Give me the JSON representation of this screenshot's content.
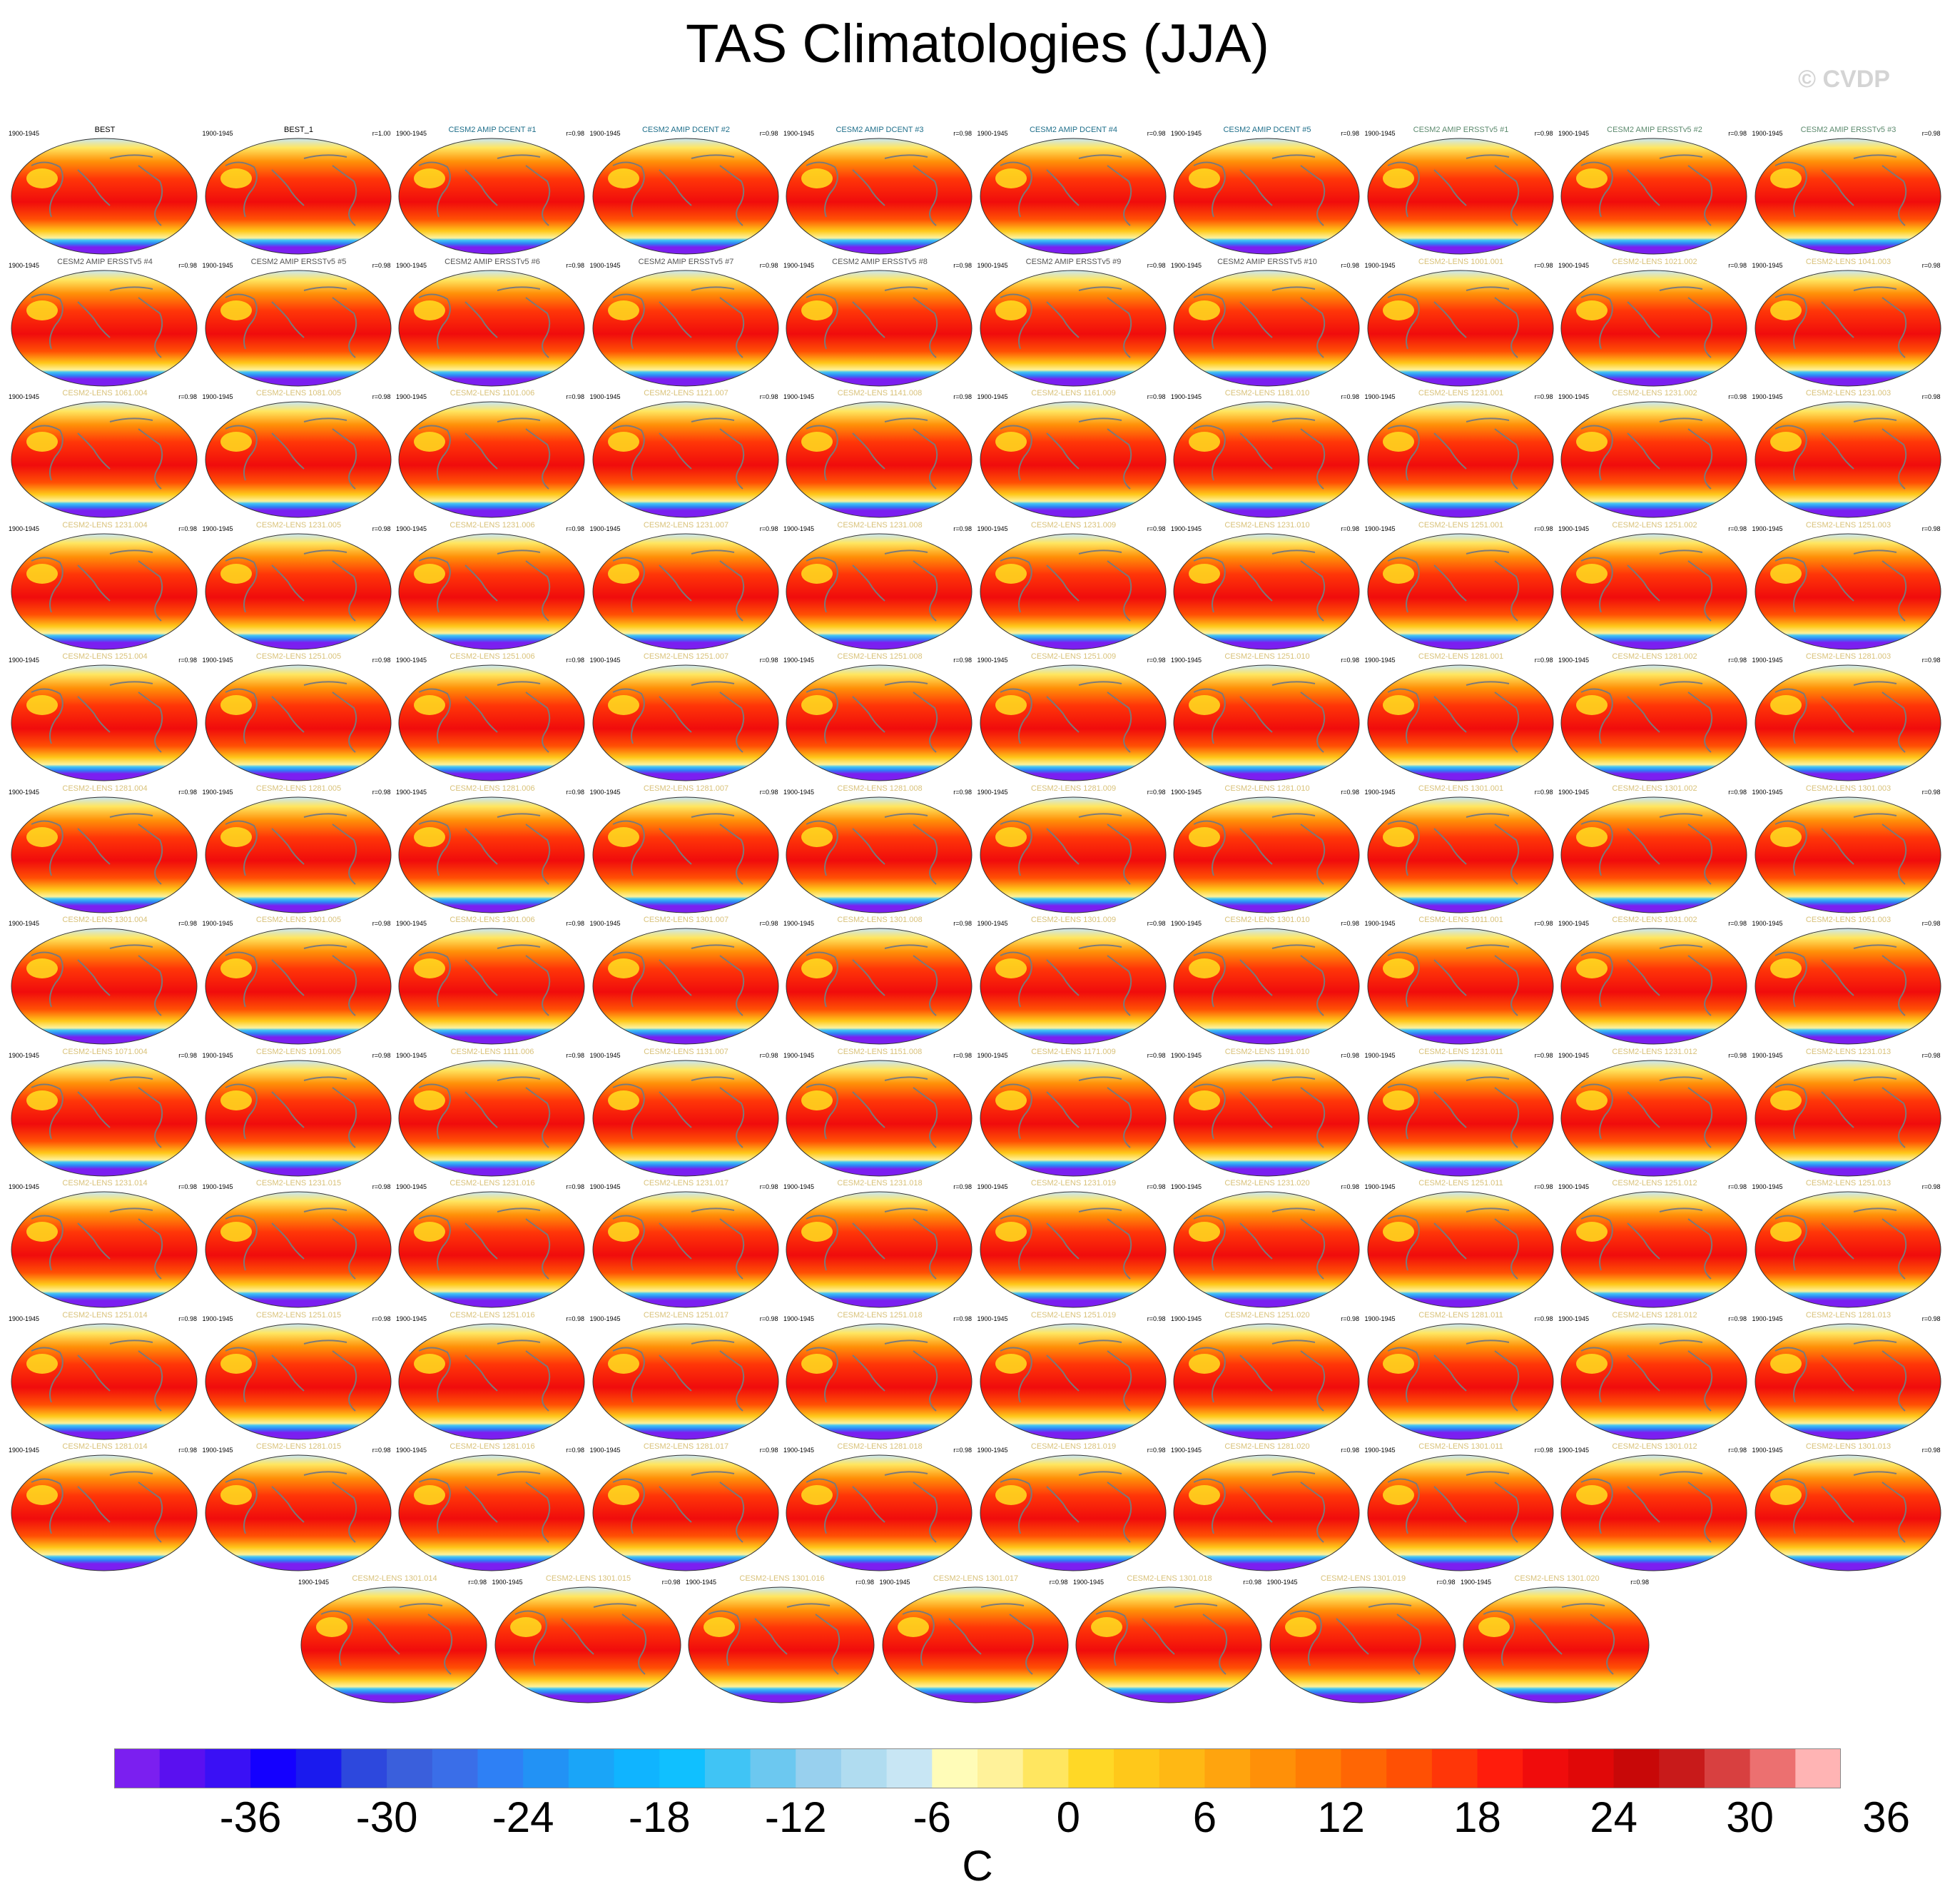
{
  "title": "TAS Climatologies (JJA)",
  "watermark": "© CVDP",
  "period": "1900-1945",
  "panels": [
    {
      "name": "BEST",
      "corr": "",
      "group": "obs"
    },
    {
      "name": "BEST_1",
      "corr": "r=1.00",
      "group": "obs"
    },
    {
      "name": "CESM2 AMIP DCENT #1",
      "corr": "r=0.98",
      "group": "dcent"
    },
    {
      "name": "CESM2 AMIP DCENT #2",
      "corr": "r=0.98",
      "group": "dcent"
    },
    {
      "name": "CESM2 AMIP DCENT #3",
      "corr": "r=0.98",
      "group": "dcent"
    },
    {
      "name": "CESM2 AMIP DCENT #4",
      "corr": "r=0.98",
      "group": "dcent"
    },
    {
      "name": "CESM2 AMIP DCENT #5",
      "corr": "r=0.98",
      "group": "dcent"
    },
    {
      "name": "CESM2 AMIP ERSSTv5 #1",
      "corr": "r=0.98",
      "group": "ersst"
    },
    {
      "name": "CESM2 AMIP ERSSTv5 #2",
      "corr": "r=0.98",
      "group": "ersst"
    },
    {
      "name": "CESM2 AMIP ERSSTv5 #3",
      "corr": "r=0.98",
      "group": "ersst"
    },
    {
      "name": "CESM2 AMIP ERSSTv5 #4",
      "corr": "r=0.98",
      "group": "ersst2"
    },
    {
      "name": "CESM2 AMIP ERSSTv5 #5",
      "corr": "r=0.98",
      "group": "ersst2"
    },
    {
      "name": "CESM2 AMIP ERSSTv5 #6",
      "corr": "r=0.98",
      "group": "ersst2"
    },
    {
      "name": "CESM2 AMIP ERSSTv5 #7",
      "corr": "r=0.98",
      "group": "ersst2"
    },
    {
      "name": "CESM2 AMIP ERSSTv5 #8",
      "corr": "r=0.98",
      "group": "ersst2"
    },
    {
      "name": "CESM2 AMIP ERSSTv5 #9",
      "corr": "r=0.98",
      "group": "ersst2"
    },
    {
      "name": "CESM2 AMIP ERSSTv5 #10",
      "corr": "r=0.98",
      "group": "ersst2"
    },
    {
      "name": "CESM2-LENS 1001.001",
      "corr": "r=0.98",
      "group": "lens"
    },
    {
      "name": "CESM2-LENS 1021.002",
      "corr": "r=0.98",
      "group": "lens"
    },
    {
      "name": "CESM2-LENS 1041.003",
      "corr": "r=0.98",
      "group": "lens"
    },
    {
      "name": "CESM2-LENS 1061.004",
      "corr": "r=0.98",
      "group": "lens"
    },
    {
      "name": "CESM2-LENS 1081.005",
      "corr": "r=0.98",
      "group": "lens"
    },
    {
      "name": "CESM2-LENS 1101.006",
      "corr": "r=0.98",
      "group": "lens"
    },
    {
      "name": "CESM2-LENS 1121.007",
      "corr": "r=0.98",
      "group": "lens"
    },
    {
      "name": "CESM2-LENS 1141.008",
      "corr": "r=0.98",
      "group": "lens"
    },
    {
      "name": "CESM2-LENS 1161.009",
      "corr": "r=0.98",
      "group": "lens"
    },
    {
      "name": "CESM2-LENS 1181.010",
      "corr": "r=0.98",
      "group": "lens"
    },
    {
      "name": "CESM2-LENS 1231.001",
      "corr": "r=0.98",
      "group": "lens"
    },
    {
      "name": "CESM2-LENS 1231.002",
      "corr": "r=0.98",
      "group": "lens"
    },
    {
      "name": "CESM2-LENS 1231.003",
      "corr": "r=0.98",
      "group": "lens"
    },
    {
      "name": "CESM2-LENS 1231.004",
      "corr": "r=0.98",
      "group": "lens"
    },
    {
      "name": "CESM2-LENS 1231.005",
      "corr": "r=0.98",
      "group": "lens"
    },
    {
      "name": "CESM2-LENS 1231.006",
      "corr": "r=0.98",
      "group": "lens"
    },
    {
      "name": "CESM2-LENS 1231.007",
      "corr": "r=0.98",
      "group": "lens"
    },
    {
      "name": "CESM2-LENS 1231.008",
      "corr": "r=0.98",
      "group": "lens"
    },
    {
      "name": "CESM2-LENS 1231.009",
      "corr": "r=0.98",
      "group": "lens"
    },
    {
      "name": "CESM2-LENS 1231.010",
      "corr": "r=0.98",
      "group": "lens"
    },
    {
      "name": "CESM2-LENS 1251.001",
      "corr": "r=0.98",
      "group": "lens"
    },
    {
      "name": "CESM2-LENS 1251.002",
      "corr": "r=0.98",
      "group": "lens"
    },
    {
      "name": "CESM2-LENS 1251.003",
      "corr": "r=0.98",
      "group": "lens"
    },
    {
      "name": "CESM2-LENS 1251.004",
      "corr": "r=0.98",
      "group": "lens"
    },
    {
      "name": "CESM2-LENS 1251.005",
      "corr": "r=0.98",
      "group": "lens"
    },
    {
      "name": "CESM2-LENS 1251.006",
      "corr": "r=0.98",
      "group": "lens"
    },
    {
      "name": "CESM2-LENS 1251.007",
      "corr": "r=0.98",
      "group": "lens"
    },
    {
      "name": "CESM2-LENS 1251.008",
      "corr": "r=0.98",
      "group": "lens"
    },
    {
      "name": "CESM2-LENS 1251.009",
      "corr": "r=0.98",
      "group": "lens"
    },
    {
      "name": "CESM2-LENS 1251.010",
      "corr": "r=0.98",
      "group": "lens"
    },
    {
      "name": "CESM2-LENS 1281.001",
      "corr": "r=0.98",
      "group": "lens"
    },
    {
      "name": "CESM2-LENS 1281.002",
      "corr": "r=0.98",
      "group": "lens"
    },
    {
      "name": "CESM2-LENS 1281.003",
      "corr": "r=0.98",
      "group": "lens"
    },
    {
      "name": "CESM2-LENS 1281.004",
      "corr": "r=0.98",
      "group": "lens"
    },
    {
      "name": "CESM2-LENS 1281.005",
      "corr": "r=0.98",
      "group": "lens"
    },
    {
      "name": "CESM2-LENS 1281.006",
      "corr": "r=0.98",
      "group": "lens"
    },
    {
      "name": "CESM2-LENS 1281.007",
      "corr": "r=0.98",
      "group": "lens"
    },
    {
      "name": "CESM2-LENS 1281.008",
      "corr": "r=0.98",
      "group": "lens"
    },
    {
      "name": "CESM2-LENS 1281.009",
      "corr": "r=0.98",
      "group": "lens"
    },
    {
      "name": "CESM2-LENS 1281.010",
      "corr": "r=0.98",
      "group": "lens"
    },
    {
      "name": "CESM2-LENS 1301.001",
      "corr": "r=0.98",
      "group": "lens"
    },
    {
      "name": "CESM2-LENS 1301.002",
      "corr": "r=0.98",
      "group": "lens"
    },
    {
      "name": "CESM2-LENS 1301.003",
      "corr": "r=0.98",
      "group": "lens"
    },
    {
      "name": "CESM2-LENS 1301.004",
      "corr": "r=0.98",
      "group": "lens"
    },
    {
      "name": "CESM2-LENS 1301.005",
      "corr": "r=0.98",
      "group": "lens"
    },
    {
      "name": "CESM2-LENS 1301.006",
      "corr": "r=0.98",
      "group": "lens"
    },
    {
      "name": "CESM2-LENS 1301.007",
      "corr": "r=0.98",
      "group": "lens"
    },
    {
      "name": "CESM2-LENS 1301.008",
      "corr": "r=0.98",
      "group": "lens"
    },
    {
      "name": "CESM2-LENS 1301.009",
      "corr": "r=0.98",
      "group": "lens"
    },
    {
      "name": "CESM2-LENS 1301.010",
      "corr": "r=0.98",
      "group": "lens"
    },
    {
      "name": "CESM2-LENS 1011.001",
      "corr": "r=0.98",
      "group": "lens"
    },
    {
      "name": "CESM2-LENS 1031.002",
      "corr": "r=0.98",
      "group": "lens"
    },
    {
      "name": "CESM2-LENS 1051.003",
      "corr": "r=0.98",
      "group": "lens"
    },
    {
      "name": "CESM2-LENS 1071.004",
      "corr": "r=0.98",
      "group": "lens"
    },
    {
      "name": "CESM2-LENS 1091.005",
      "corr": "r=0.98",
      "group": "lens"
    },
    {
      "name": "CESM2-LENS 1111.006",
      "corr": "r=0.98",
      "group": "lens"
    },
    {
      "name": "CESM2-LENS 1131.007",
      "corr": "r=0.98",
      "group": "lens"
    },
    {
      "name": "CESM2-LENS 1151.008",
      "corr": "r=0.98",
      "group": "lens"
    },
    {
      "name": "CESM2-LENS 1171.009",
      "corr": "r=0.98",
      "group": "lens"
    },
    {
      "name": "CESM2-LENS 1191.010",
      "corr": "r=0.98",
      "group": "lens"
    },
    {
      "name": "CESM2-LENS 1231.011",
      "corr": "r=0.98",
      "group": "lens"
    },
    {
      "name": "CESM2-LENS 1231.012",
      "corr": "r=0.98",
      "group": "lens"
    },
    {
      "name": "CESM2-LENS 1231.013",
      "corr": "r=0.98",
      "group": "lens"
    },
    {
      "name": "CESM2-LENS 1231.014",
      "corr": "r=0.98",
      "group": "lens"
    },
    {
      "name": "CESM2-LENS 1231.015",
      "corr": "r=0.98",
      "group": "lens"
    },
    {
      "name": "CESM2-LENS 1231.016",
      "corr": "r=0.98",
      "group": "lens"
    },
    {
      "name": "CESM2-LENS 1231.017",
      "corr": "r=0.98",
      "group": "lens"
    },
    {
      "name": "CESM2-LENS 1231.018",
      "corr": "r=0.98",
      "group": "lens"
    },
    {
      "name": "CESM2-LENS 1231.019",
      "corr": "r=0.98",
      "group": "lens"
    },
    {
      "name": "CESM2-LENS 1231.020",
      "corr": "r=0.98",
      "group": "lens"
    },
    {
      "name": "CESM2-LENS 1251.011",
      "corr": "r=0.98",
      "group": "lens"
    },
    {
      "name": "CESM2-LENS 1251.012",
      "corr": "r=0.98",
      "group": "lens"
    },
    {
      "name": "CESM2-LENS 1251.013",
      "corr": "r=0.98",
      "group": "lens"
    },
    {
      "name": "CESM2-LENS 1251.014",
      "corr": "r=0.98",
      "group": "lens"
    },
    {
      "name": "CESM2-LENS 1251.015",
      "corr": "r=0.98",
      "group": "lens"
    },
    {
      "name": "CESM2-LENS 1251.016",
      "corr": "r=0.98",
      "group": "lens"
    },
    {
      "name": "CESM2-LENS 1251.017",
      "corr": "r=0.98",
      "group": "lens"
    },
    {
      "name": "CESM2-LENS 1251.018",
      "corr": "r=0.98",
      "group": "lens"
    },
    {
      "name": "CESM2-LENS 1251.019",
      "corr": "r=0.98",
      "group": "lens"
    },
    {
      "name": "CESM2-LENS 1251.020",
      "corr": "r=0.98",
      "group": "lens"
    },
    {
      "name": "CESM2-LENS 1281.011",
      "corr": "r=0.98",
      "group": "lens"
    },
    {
      "name": "CESM2-LENS 1281.012",
      "corr": "r=0.98",
      "group": "lens"
    },
    {
      "name": "CESM2-LENS 1281.013",
      "corr": "r=0.98",
      "group": "lens"
    },
    {
      "name": "CESM2-LENS 1281.014",
      "corr": "r=0.98",
      "group": "lens"
    },
    {
      "name": "CESM2-LENS 1281.015",
      "corr": "r=0.98",
      "group": "lens"
    },
    {
      "name": "CESM2-LENS 1281.016",
      "corr": "r=0.98",
      "group": "lens"
    },
    {
      "name": "CESM2-LENS 1281.017",
      "corr": "r=0.98",
      "group": "lens"
    },
    {
      "name": "CESM2-LENS 1281.018",
      "corr": "r=0.98",
      "group": "lens"
    },
    {
      "name": "CESM2-LENS 1281.019",
      "corr": "r=0.98",
      "group": "lens"
    },
    {
      "name": "CESM2-LENS 1281.020",
      "corr": "r=0.98",
      "group": "lens"
    },
    {
      "name": "CESM2-LENS 1301.011",
      "corr": "r=0.98",
      "group": "lens"
    },
    {
      "name": "CESM2-LENS 1301.012",
      "corr": "r=0.98",
      "group": "lens"
    },
    {
      "name": "CESM2-LENS 1301.013",
      "corr": "r=0.98",
      "group": "lens"
    },
    {
      "name": "CESM2-LENS 1301.014",
      "corr": "r=0.98",
      "group": "lens"
    },
    {
      "name": "CESM2-LENS 1301.015",
      "corr": "r=0.98",
      "group": "lens"
    },
    {
      "name": "CESM2-LENS 1301.016",
      "corr": "r=0.98",
      "group": "lens"
    },
    {
      "name": "CESM2-LENS 1301.017",
      "corr": "r=0.98",
      "group": "lens"
    },
    {
      "name": "CESM2-LENS 1301.018",
      "corr": "r=0.98",
      "group": "lens"
    },
    {
      "name": "CESM2-LENS 1301.019",
      "corr": "r=0.98",
      "group": "lens"
    },
    {
      "name": "CESM2-LENS 1301.020",
      "corr": "r=0.98",
      "group": "lens"
    }
  ],
  "group_colors": {
    "obs": "#000000",
    "dcent": "#1f6f8b",
    "ersst": "#5c8a6e",
    "ersst2": "#555555",
    "lens": "#d9c27a"
  },
  "colorbar": {
    "ticks": [
      "-36",
      "-30",
      "-24",
      "-18",
      "-12",
      "-6",
      "0",
      "6",
      "12",
      "18",
      "24",
      "30",
      "36"
    ],
    "units": "C",
    "colors": [
      "#7b1ff0",
      "#5a10f0",
      "#3a10f5",
      "#1400ff",
      "#1a1aee",
      "#2d48dd",
      "#3a5fdc",
      "#3a6ee8",
      "#2e80f5",
      "#2292f5",
      "#1aa5f8",
      "#10b4ff",
      "#10c0ff",
      "#40c4f5",
      "#6cc8f0",
      "#98d0ee",
      "#b0dcf0",
      "#c8e6f4",
      "#fffcb8",
      "#fff29a",
      "#ffe660",
      "#ffd826",
      "#ffc81a",
      "#ffb814",
      "#ffa40e",
      "#ff9008",
      "#ff7c04",
      "#ff6604",
      "#ff5004",
      "#ff3608",
      "#ff1c0c",
      "#f00c0c",
      "#e00808",
      "#c80808",
      "#c81a1a",
      "#d84040",
      "#ec7070",
      "#ffb4b4"
    ]
  }
}
